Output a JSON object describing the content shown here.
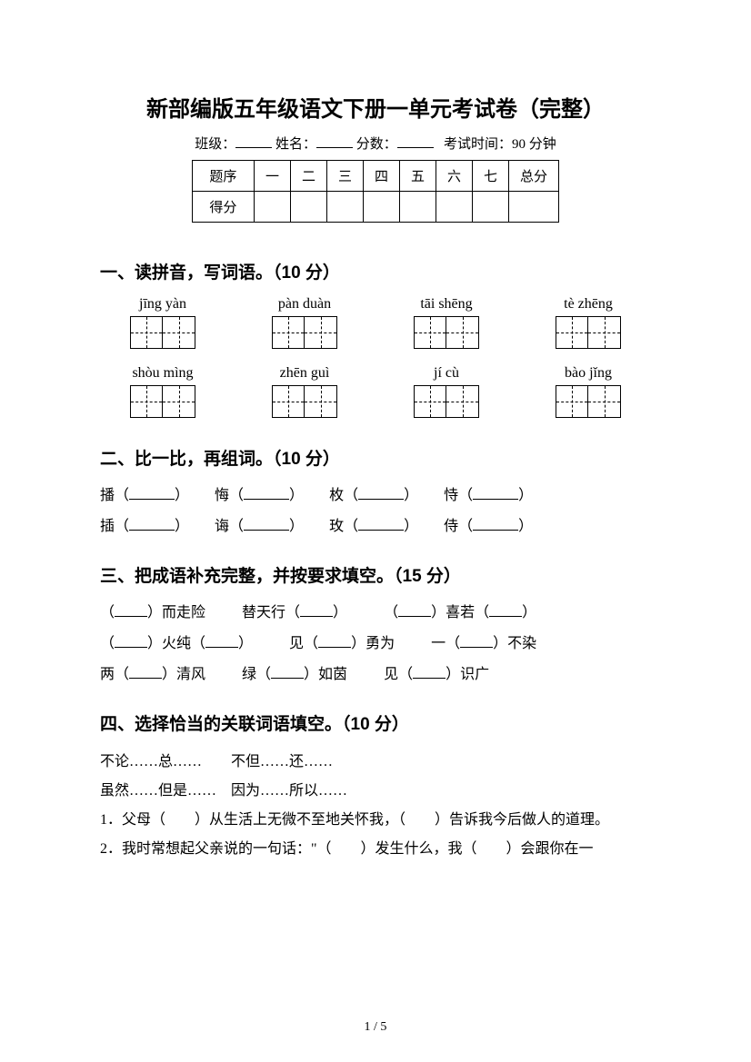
{
  "title": "新部编版五年级语文下册一单元考试卷（完整）",
  "meta": {
    "class_label": "班级：",
    "name_label": "姓名：",
    "score_label": "分数：",
    "time_label": "考试时间：90 分钟"
  },
  "score_table": {
    "headers": [
      "题序",
      "一",
      "二",
      "三",
      "四",
      "五",
      "六",
      "七",
      "总分"
    ],
    "row2_label": "得分"
  },
  "section1": {
    "heading": "一、读拼音，写词语。（10 分）",
    "row1": [
      "jīng yàn",
      "pàn duàn",
      "tāi shēng",
      "tè zhēng"
    ],
    "row2": [
      "shòu mìng",
      "zhēn guì",
      "jí cù",
      "bào jǐng"
    ]
  },
  "section2": {
    "heading": "二、比一比，再组词。（10 分）",
    "row1": [
      "播（",
      "悔（",
      "枚（",
      "恃（"
    ],
    "row2": [
      "插（",
      "诲（",
      "玫（",
      "侍（"
    ]
  },
  "section3": {
    "heading": "三、把成语补充完整，并按要求填空。（15 分）",
    "items": [
      [
        "（",
        "）而走险",
        "替天行（",
        "）",
        "（",
        "）喜若（",
        "）"
      ],
      [
        "（",
        "）火纯（",
        "）",
        "见（",
        "）勇为",
        "一（",
        "）不染"
      ],
      [
        "两（",
        "）清风",
        "绿（",
        "）如茵",
        "见（",
        "）识广"
      ]
    ]
  },
  "section4": {
    "heading": "四、选择恰当的关联词语填空。（10 分）",
    "options_line1": "不论……总……　　不但……还……",
    "options_line2": "虽然……但是……　因为……所以……",
    "q1": "1．父母（　　）从生活上无微不至地关怀我，（　　）告诉我今后做人的道理。",
    "q2": "2．我时常想起父亲说的一句话：\"（　　）发生什么，我（　　）会跟你在一"
  },
  "page_number": "1 / 5"
}
